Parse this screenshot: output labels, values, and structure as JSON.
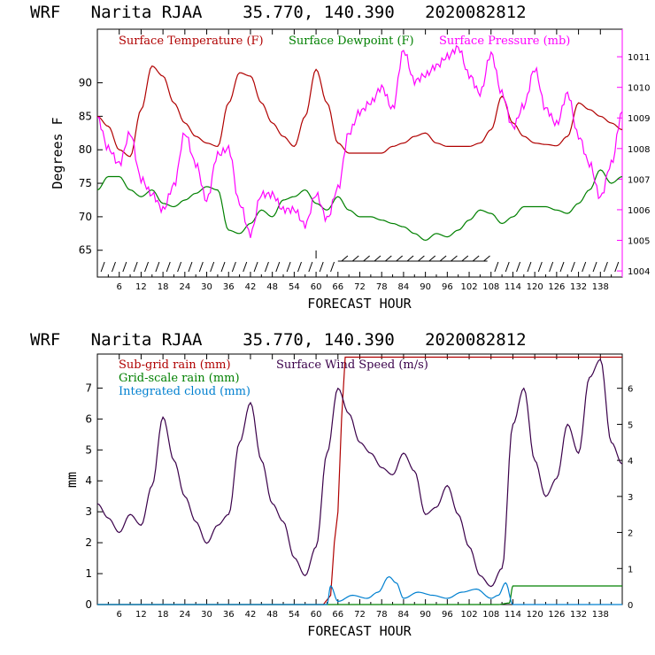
{
  "chart_data": [
    {
      "type": "line",
      "title": "WRF   Narita RJAA    35.770, 140.390   2020082812",
      "xlabel": "FORECAST HOUR",
      "ylabel": "Degrees F",
      "xlim": [
        0,
        144
      ],
      "ylim": [
        61,
        98
      ],
      "y2lim": [
        1003.8,
        1011.9
      ],
      "x_ticks": [
        "6",
        "12",
        "18",
        "24",
        "30",
        "36",
        "42",
        "48",
        "54",
        "60",
        "66",
        "72",
        "78",
        "84",
        "90",
        "96",
        "102",
        "108",
        "114",
        "120",
        "126",
        "132",
        "138"
      ],
      "y_ticks": [
        "65",
        "70",
        "75",
        "80",
        "85",
        "90"
      ],
      "y2_ticks": [
        "1004",
        "1005",
        "1006",
        "1007",
        "1008",
        "1009",
        "1010",
        "1011"
      ],
      "legend": [
        {
          "label": "Surface Temperature (F)",
          "color": "#b00000"
        },
        {
          "label": "Surface Dewpoint (F)",
          "color": "#008000"
        },
        {
          "label": "Surface Pressure (mb)",
          "color": "#ff00ff"
        }
      ],
      "series": [
        {
          "name": "Surface Temperature (F)",
          "axis": "left",
          "color": "#b00000",
          "x": [
            0,
            3,
            6,
            9,
            12,
            15,
            18,
            21,
            24,
            27,
            30,
            33,
            36,
            39,
            42,
            45,
            48,
            51,
            54,
            57,
            60,
            63,
            66,
            69,
            72,
            75,
            78,
            81,
            84,
            87,
            90,
            93,
            96,
            99,
            102,
            105,
            108,
            111,
            114,
            117,
            120,
            123,
            126,
            129,
            132,
            135,
            138,
            141,
            144
          ],
          "y": [
            85,
            83.5,
            80,
            79,
            86,
            92.5,
            91,
            87,
            84,
            82,
            81,
            80.5,
            87,
            91.5,
            91,
            87,
            84,
            82,
            80.5,
            85,
            92,
            87,
            81,
            79.5,
            79.5,
            79.5,
            79.5,
            80.5,
            81,
            82,
            82.5,
            81,
            80.5,
            80.5,
            80.5,
            81,
            83,
            88,
            84,
            82,
            81,
            80.8,
            80.6,
            82,
            87,
            86,
            85,
            84,
            83
          ]
        },
        {
          "name": "Surface Dewpoint (F)",
          "axis": "left",
          "color": "#008000",
          "x": [
            0,
            3,
            6,
            9,
            12,
            15,
            18,
            21,
            24,
            27,
            30,
            33,
            36,
            39,
            42,
            45,
            48,
            51,
            54,
            57,
            60,
            63,
            66,
            69,
            72,
            75,
            78,
            81,
            84,
            87,
            90,
            93,
            96,
            99,
            102,
            105,
            108,
            111,
            114,
            117,
            120,
            123,
            126,
            129,
            132,
            135,
            138,
            141,
            144
          ],
          "y": [
            74,
            76,
            76,
            74,
            73,
            74,
            72,
            71.5,
            72.5,
            73.5,
            74.5,
            74,
            68,
            67.5,
            69,
            71,
            70,
            72.5,
            73,
            74,
            72,
            71,
            73,
            71,
            70,
            70,
            69.5,
            69,
            68.5,
            67.5,
            66.5,
            67.5,
            67,
            68,
            69.5,
            71,
            70.5,
            69,
            70,
            71.5,
            71.5,
            71.5,
            71,
            70.5,
            72,
            74,
            77,
            75,
            76
          ]
        },
        {
          "name": "Surface Pressure (mb)",
          "axis": "right",
          "color": "#ff00ff",
          "x": [
            0,
            3,
            6,
            9,
            12,
            15,
            18,
            21,
            24,
            27,
            30,
            33,
            36,
            39,
            42,
            45,
            48,
            51,
            54,
            57,
            60,
            63,
            66,
            69,
            72,
            75,
            78,
            81,
            84,
            87,
            90,
            93,
            96,
            99,
            102,
            105,
            108,
            111,
            114,
            117,
            120,
            123,
            126,
            129,
            132,
            135,
            138,
            141,
            144
          ],
          "y": [
            1009,
            1008,
            1007.5,
            1008.5,
            1007,
            1006.5,
            1006,
            1006.8,
            1008.5,
            1007.5,
            1006.3,
            1007.8,
            1008,
            1006.2,
            1005.2,
            1006.5,
            1006.5,
            1006,
            1006,
            1005.5,
            1006.5,
            1005.7,
            1006.7,
            1008.5,
            1009.2,
            1009.5,
            1010,
            1009.3,
            1011.2,
            1010.2,
            1010.4,
            1010.7,
            1011,
            1011.3,
            1010.4,
            1009.8,
            1011.1,
            1009.8,
            1008.7,
            1009.4,
            1010.6,
            1009.3,
            1008.8,
            1009.8,
            1008.4,
            1007.5,
            1006.4,
            1007.5,
            1009.2
          ]
        }
      ],
      "wind_barb_note": "wind barbs along bottom"
    },
    {
      "type": "line",
      "title": "WRF   Narita RJAA    35.770, 140.390   2020082812",
      "xlabel": "FORECAST HOUR",
      "ylabel": "mm",
      "xlim": [
        0,
        144
      ],
      "ylim": [
        0,
        8.1
      ],
      "y2lim": [
        0,
        6.95
      ],
      "x_ticks": [
        "6",
        "12",
        "18",
        "24",
        "30",
        "36",
        "42",
        "48",
        "54",
        "60",
        "66",
        "72",
        "78",
        "84",
        "90",
        "96",
        "102",
        "108",
        "114",
        "120",
        "126",
        "132",
        "138"
      ],
      "y_ticks": [
        "0",
        "1",
        "2",
        "3",
        "4",
        "5",
        "6",
        "7"
      ],
      "y2_ticks": [
        "0",
        "1",
        "2",
        "3",
        "4",
        "5",
        "6"
      ],
      "legend": [
        {
          "label": "Sub-grid rain (mm)",
          "color": "#b00000"
        },
        {
          "label": "Surface Wind Speed (m/s)",
          "color": "#3a004a"
        },
        {
          "label": "Grid-scale rain (mm)",
          "color": "#008000"
        },
        {
          "label": "Integrated cloud (mm)",
          "color": "#0080d0"
        }
      ],
      "series": [
        {
          "name": "Sub-grid rain (mm)",
          "axis": "left",
          "color": "#b00000",
          "x": [
            0,
            62,
            64,
            65,
            66,
            67,
            68,
            144
          ],
          "y": [
            0,
            0,
            0.3,
            2,
            3,
            6,
            8,
            8
          ]
        },
        {
          "name": "Grid-scale rain (mm)",
          "axis": "left",
          "color": "#008000",
          "x": [
            0,
            110,
            113,
            114,
            144
          ],
          "y": [
            0,
            0,
            0.05,
            0.6,
            0.6
          ]
        },
        {
          "name": "Integrated cloud (mm)",
          "axis": "left",
          "color": "#0080d0",
          "x": [
            0,
            63,
            64,
            66,
            70,
            74,
            77,
            80,
            82,
            84,
            88,
            92,
            96,
            100,
            104,
            108,
            110,
            112,
            114,
            116,
            120,
            144
          ],
          "y": [
            0,
            0,
            0.6,
            0.1,
            0.3,
            0.2,
            0.4,
            0.9,
            0.7,
            0.2,
            0.4,
            0.3,
            0.2,
            0.4,
            0.5,
            0.2,
            0.3,
            0.7,
            0,
            0,
            0,
            0
          ]
        },
        {
          "name": "Surface Wind Speed (m/s)",
          "axis": "right",
          "color": "#3a004a",
          "x": [
            0,
            3,
            6,
            9,
            12,
            15,
            18,
            21,
            24,
            27,
            30,
            33,
            36,
            39,
            42,
            45,
            48,
            51,
            54,
            57,
            60,
            63,
            66,
            69,
            72,
            75,
            78,
            81,
            84,
            87,
            90,
            93,
            96,
            99,
            102,
            105,
            108,
            111,
            114,
            117,
            120,
            123,
            126,
            129,
            132,
            135,
            138,
            141,
            144
          ],
          "y": [
            2.8,
            2.4,
            2.0,
            2.5,
            2.2,
            3.3,
            5.2,
            4.0,
            3.0,
            2.3,
            1.7,
            2.2,
            2.5,
            4.5,
            5.6,
            4.0,
            2.8,
            2.3,
            1.3,
            0.8,
            1.6,
            4.2,
            6.0,
            5.3,
            4.5,
            4.2,
            3.8,
            3.6,
            4.2,
            3.7,
            2.5,
            2.7,
            3.3,
            2.5,
            1.6,
            0.8,
            0.5,
            1.0,
            5.0,
            6.0,
            4.0,
            3.0,
            3.5,
            5.0,
            4.2,
            6.3,
            6.8,
            4.5,
            3.9
          ]
        }
      ]
    }
  ]
}
